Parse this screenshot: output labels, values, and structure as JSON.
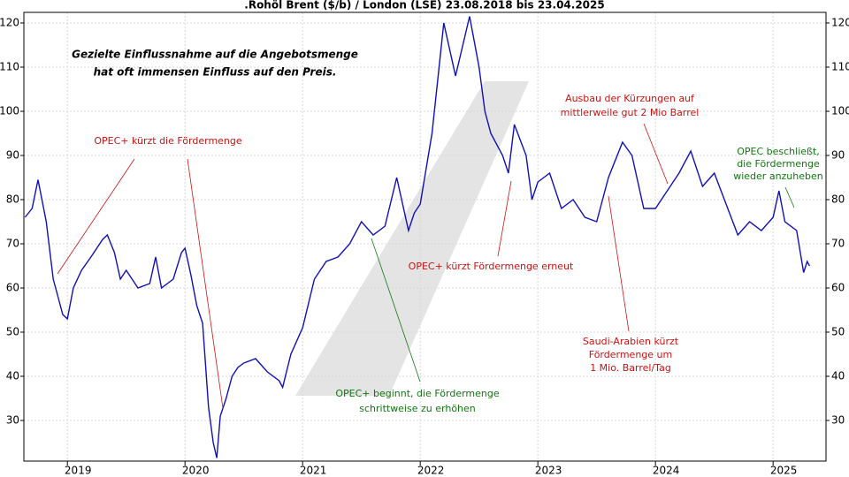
{
  "chart_data": {
    "type": "line",
    "title": ".Rohöl Brent ($/b) / London (LSE) 23.08.2018 bis 23.04.2025",
    "x": [
      2018.64,
      2018.7,
      2018.75,
      2018.82,
      2018.88,
      2018.92,
      2018.96,
      2019.0,
      2019.05,
      2019.12,
      2019.2,
      2019.3,
      2019.34,
      2019.4,
      2019.45,
      2019.5,
      2019.6,
      2019.7,
      2019.75,
      2019.8,
      2019.9,
      2019.97,
      2020.0,
      2020.05,
      2020.1,
      2020.15,
      2020.2,
      2020.24,
      2020.27,
      2020.3,
      2020.35,
      2020.4,
      2020.45,
      2020.5,
      2020.6,
      2020.7,
      2020.8,
      2020.83,
      2020.9,
      2021.0,
      2021.1,
      2021.2,
      2021.3,
      2021.4,
      2021.5,
      2021.6,
      2021.7,
      2021.8,
      2021.9,
      2021.95,
      2022.0,
      2022.1,
      2022.16,
      2022.2,
      2022.3,
      2022.42,
      2022.5,
      2022.55,
      2022.6,
      2022.7,
      2022.75,
      2022.8,
      2022.9,
      2022.95,
      2023.0,
      2023.1,
      2023.2,
      2023.3,
      2023.4,
      2023.5,
      2023.6,
      2023.72,
      2023.8,
      2023.9,
      2024.0,
      2024.1,
      2024.2,
      2024.3,
      2024.4,
      2024.5,
      2024.6,
      2024.7,
      2024.8,
      2024.9,
      2025.0,
      2025.05,
      2025.1,
      2025.2,
      2025.26,
      2025.29,
      2025.31
    ],
    "values": [
      76,
      78,
      84.5,
      75,
      62,
      58,
      54,
      53,
      60,
      64,
      67,
      71,
      72,
      68,
      62,
      64,
      60,
      61,
      67,
      60,
      62,
      68,
      69,
      63,
      56,
      52,
      33,
      25,
      21.5,
      31,
      35,
      40,
      42,
      43,
      44,
      41,
      39,
      37.5,
      45,
      51,
      62,
      66,
      67,
      70,
      75,
      72,
      74,
      85,
      73,
      77,
      79,
      95,
      110,
      120,
      108,
      121.5,
      110,
      100,
      95,
      90,
      86,
      97,
      90,
      80,
      84,
      86,
      78,
      80,
      76,
      75,
      85,
      93,
      90,
      78,
      78,
      82,
      86,
      91,
      83,
      86,
      79,
      72,
      75,
      73,
      76,
      82,
      75,
      73,
      63.5,
      66,
      65
    ],
    "color": "#1010b8",
    "xlim": [
      2018.63,
      2025.45
    ],
    "xticks": [
      2019,
      2020,
      2021,
      2022,
      2023,
      2024,
      2025
    ],
    "ylim": [
      20.8,
      122.4
    ],
    "yticks": [
      30,
      40,
      50,
      60,
      70,
      80,
      90,
      100,
      110,
      120
    ],
    "grid": true,
    "annotations": [
      {
        "lines": [
          "Gezielte Einflussnahme auf die Angebotsmenge",
          "hat oft immensen Einfluss auf den Preis."
        ],
        "color": "#000000"
      },
      {
        "lines": [
          "OPEC+ kürzt die Fördermenge"
        ],
        "color": "#cc1111"
      },
      {
        "lines": [
          "OPEC+ kürzt Fördermenge erneut"
        ],
        "color": "#cc1111"
      },
      {
        "lines": [
          "Ausbau der Kürzungen auf",
          "mittlerweile gut 2 Mio Barrel"
        ],
        "color": "#cc1111"
      },
      {
        "lines": [
          "Saudi-Arabien kürzt",
          "Fördermenge um",
          "1 Mio. Barrel/Tag"
        ],
        "color": "#cc1111"
      },
      {
        "lines": [
          "OPEC+ beginnt, die Fördermenge",
          "schrittweise zu erhöhen"
        ],
        "color": "#117711"
      },
      {
        "lines": [
          "OPEC beschließt,",
          "die Fördermenge",
          "wieder anzuheben"
        ],
        "color": "#117711"
      }
    ]
  }
}
